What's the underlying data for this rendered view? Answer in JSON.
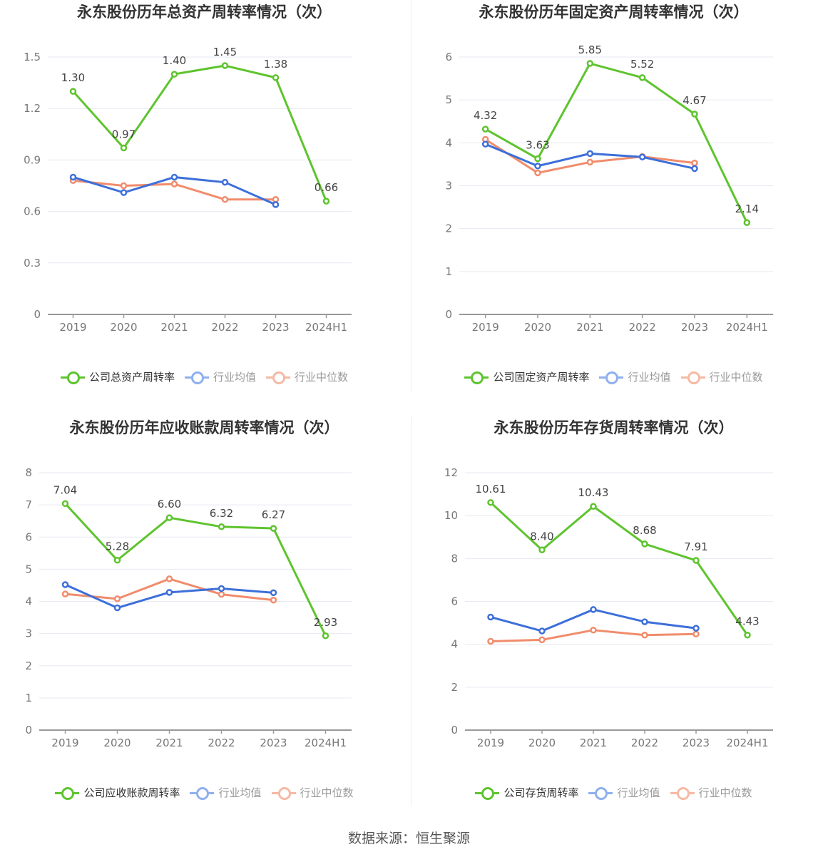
{
  "source_text": "数据来源：恒生聚源",
  "colors": {
    "company": "#5ec42e",
    "avg": "#3d6fd9",
    "median": "#f08c6c",
    "axis": "#999999",
    "grid": "#e6e9f0",
    "tick_text": "#777777",
    "label_text": "#444444"
  },
  "charts": [
    {
      "title": "永东股份历年总资产周转率情况（次）",
      "legend": [
        "公司总资产周转率",
        "行业均值",
        "行业中位数"
      ],
      "y_ticks": [
        "0",
        "0.3",
        "0.6",
        "0.9",
        "1.2",
        "1.5"
      ]
    },
    {
      "title": "永东股份历年固定资产周转率情况（次）",
      "legend": [
        "公司固定资产周转率",
        "行业均值",
        "行业中位数"
      ],
      "y_ticks": [
        "0",
        "1",
        "2",
        "3",
        "4",
        "5",
        "6"
      ]
    },
    {
      "title": "永东股份历年应收账款周转率情况（次）",
      "legend": [
        "公司应收账款周转率",
        "行业均值",
        "行业中位数"
      ],
      "y_ticks": [
        "0",
        "1",
        "2",
        "3",
        "4",
        "5",
        "6",
        "7",
        "8"
      ]
    },
    {
      "title": "永东股份历年存货周转率情况（次）",
      "legend": [
        "公司存货周转率",
        "行业均值",
        "行业中位数"
      ],
      "y_ticks": [
        "0",
        "2",
        "4",
        "6",
        "8",
        "10",
        "12"
      ]
    }
  ],
  "chart_data": [
    {
      "type": "line",
      "title": "永东股份历年总资产周转率情况（次）",
      "categories": [
        "2019",
        "2020",
        "2021",
        "2022",
        "2023",
        "2024H1"
      ],
      "ylim": [
        0,
        1.5
      ],
      "grid": true,
      "legend_position": "bottom",
      "series": [
        {
          "name": "公司总资产周转率",
          "values": [
            1.3,
            0.97,
            1.4,
            1.45,
            1.38,
            0.66
          ],
          "labels": [
            "1.30",
            "0.97",
            "1.40",
            "1.45",
            "1.38",
            "0.66"
          ]
        },
        {
          "name": "行业均值",
          "values": [
            0.8,
            0.71,
            0.8,
            0.77,
            0.64,
            null
          ]
        },
        {
          "name": "行业中位数",
          "values": [
            0.78,
            0.75,
            0.76,
            0.67,
            0.67,
            null
          ]
        }
      ]
    },
    {
      "type": "line",
      "title": "永东股份历年固定资产周转率情况（次）",
      "categories": [
        "2019",
        "2020",
        "2021",
        "2022",
        "2023",
        "2024H1"
      ],
      "ylim": [
        0,
        6
      ],
      "grid": true,
      "legend_position": "bottom",
      "series": [
        {
          "name": "公司固定资产周转率",
          "values": [
            4.32,
            3.63,
            5.85,
            5.52,
            4.67,
            2.14
          ],
          "labels": [
            "4.32",
            "3.63",
            "5.85",
            "5.52",
            "4.67",
            "2.14"
          ]
        },
        {
          "name": "行业均值",
          "values": [
            3.97,
            3.46,
            3.75,
            3.67,
            3.4,
            null
          ]
        },
        {
          "name": "行业中位数",
          "values": [
            4.08,
            3.3,
            3.55,
            3.68,
            3.53,
            null
          ]
        }
      ]
    },
    {
      "type": "line",
      "title": "永东股份历年应收账款周转率情况（次）",
      "categories": [
        "2019",
        "2020",
        "2021",
        "2022",
        "2023",
        "2024H1"
      ],
      "ylim": [
        0,
        8
      ],
      "grid": true,
      "legend_position": "bottom",
      "series": [
        {
          "name": "公司应收账款周转率",
          "values": [
            7.04,
            5.28,
            6.6,
            6.32,
            6.27,
            2.93
          ],
          "labels": [
            "7.04",
            "5.28",
            "6.60",
            "6.32",
            "6.27",
            "2.93"
          ]
        },
        {
          "name": "行业均值",
          "values": [
            4.52,
            3.8,
            4.28,
            4.4,
            4.27,
            null
          ]
        },
        {
          "name": "行业中位数",
          "values": [
            4.23,
            4.08,
            4.7,
            4.22,
            4.04,
            null
          ]
        }
      ]
    },
    {
      "type": "line",
      "title": "永东股份历年存货周转率情况（次）",
      "categories": [
        "2019",
        "2020",
        "2021",
        "2022",
        "2023",
        "2024H1"
      ],
      "ylim": [
        0,
        12
      ],
      "grid": true,
      "legend_position": "bottom",
      "series": [
        {
          "name": "公司存货周转率",
          "values": [
            10.61,
            8.4,
            10.43,
            8.68,
            7.91,
            4.43
          ],
          "labels": [
            "10.61",
            "8.40",
            "10.43",
            "8.68",
            "7.91",
            "4.43"
          ]
        },
        {
          "name": "行业均值",
          "values": [
            5.27,
            4.62,
            5.62,
            5.05,
            4.75,
            null
          ]
        },
        {
          "name": "行业中位数",
          "values": [
            4.14,
            4.21,
            4.66,
            4.43,
            4.48,
            null
          ]
        }
      ]
    }
  ]
}
